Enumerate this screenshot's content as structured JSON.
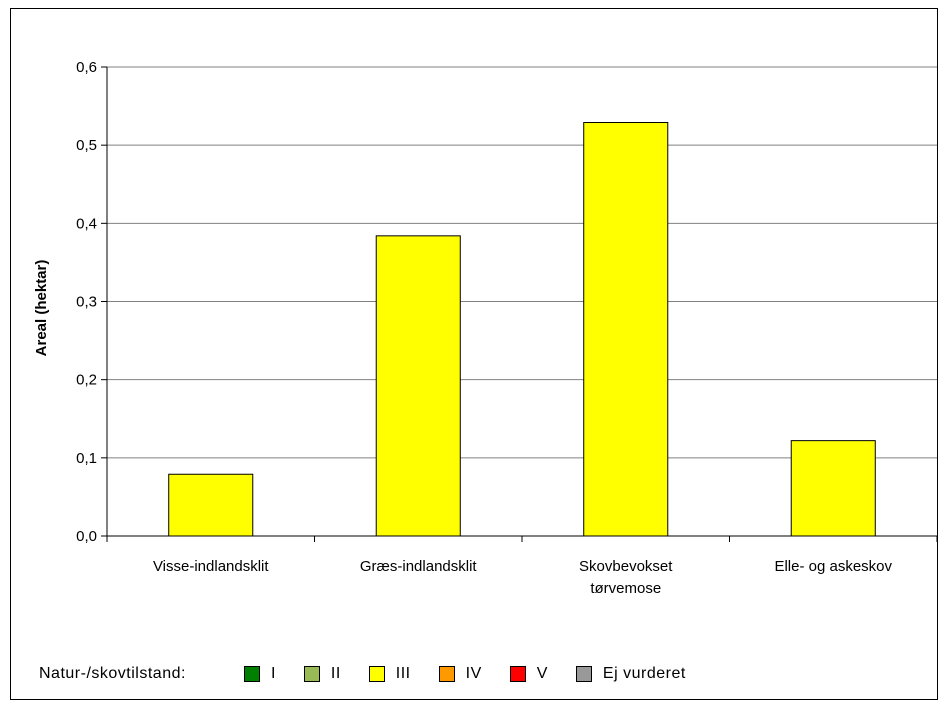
{
  "chart_data": {
    "type": "bar",
    "title": "",
    "xlabel": "",
    "ylabel": "Areal (hektar)",
    "ylim": [
      0,
      0.6
    ],
    "yticks": [
      "0,0",
      "0,1",
      "0,2",
      "0,3",
      "0,4",
      "0,5",
      "0,6"
    ],
    "grid": true,
    "categories": [
      [
        "Visse-indlandsklit"
      ],
      [
        "Græs-indlandsklit"
      ],
      [
        "Skovbevokset",
        "tørvemose"
      ],
      [
        "Elle- og askeskov"
      ]
    ],
    "values": [
      0.079,
      0.384,
      0.529,
      0.122
    ],
    "bar_colors": [
      "#ffff00",
      "#ffff00",
      "#ffff00",
      "#ffff00"
    ],
    "bar_edge_color": "#000000",
    "grid_color": "#808080"
  },
  "legend": {
    "title": "Natur-/skovtilstand:",
    "placement": "bottom",
    "items": [
      {
        "label": "I",
        "color": "#008000"
      },
      {
        "label": "II",
        "color": "#99bb55"
      },
      {
        "label": "III",
        "color": "#ffff00"
      },
      {
        "label": "IV",
        "color": "#ff9900"
      },
      {
        "label": "V",
        "color": "#ff0000"
      },
      {
        "label": "Ej vurderet",
        "color": "#999999"
      }
    ]
  }
}
